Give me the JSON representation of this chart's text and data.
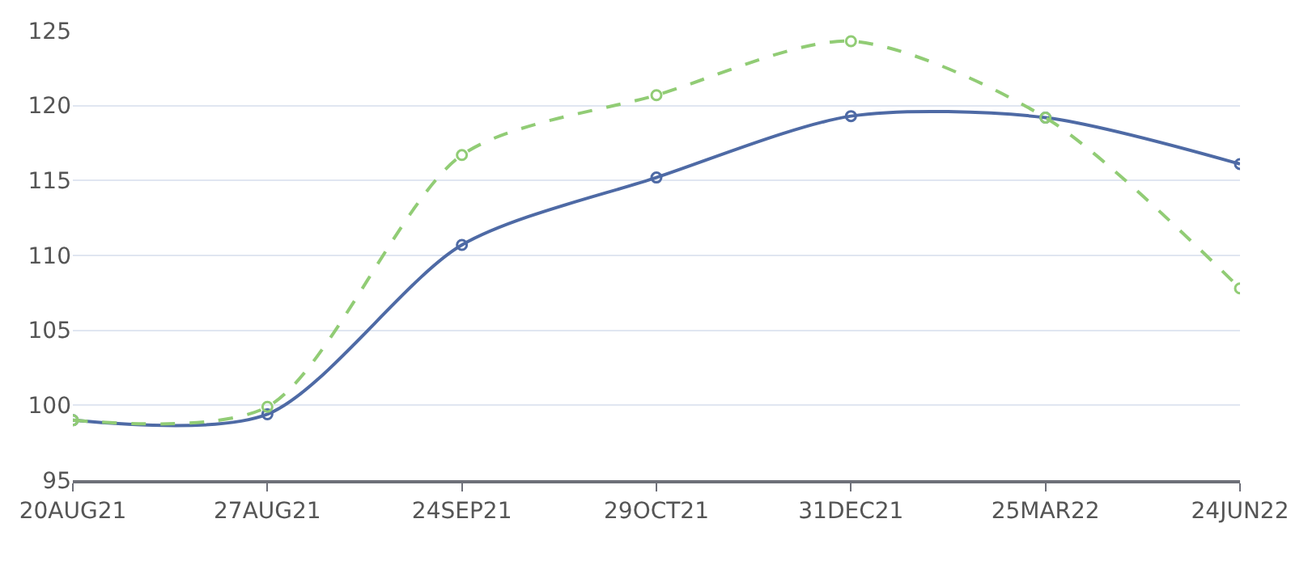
{
  "chart_data": {
    "type": "line",
    "categories": [
      "20AUG21",
      "27AUG21",
      "24SEP21",
      "29OCT21",
      "31DEC21",
      "25MAR22",
      "24JUN22"
    ],
    "series": [
      {
        "color": "#4e6aa5",
        "line_style": "solid",
        "values": [
          99.0,
          99.4,
          110.7,
          115.2,
          119.3,
          119.2,
          116.1
        ]
      },
      {
        "color": "#91cc75",
        "line_style": "dashed",
        "values": [
          99.0,
          99.9,
          116.7,
          120.7,
          124.3,
          119.2,
          107.8
        ]
      }
    ],
    "ylim": [
      95,
      125
    ],
    "yticks": [
      95,
      100,
      105,
      110,
      115,
      120,
      125
    ],
    "grid": "y",
    "marker": "circle"
  }
}
